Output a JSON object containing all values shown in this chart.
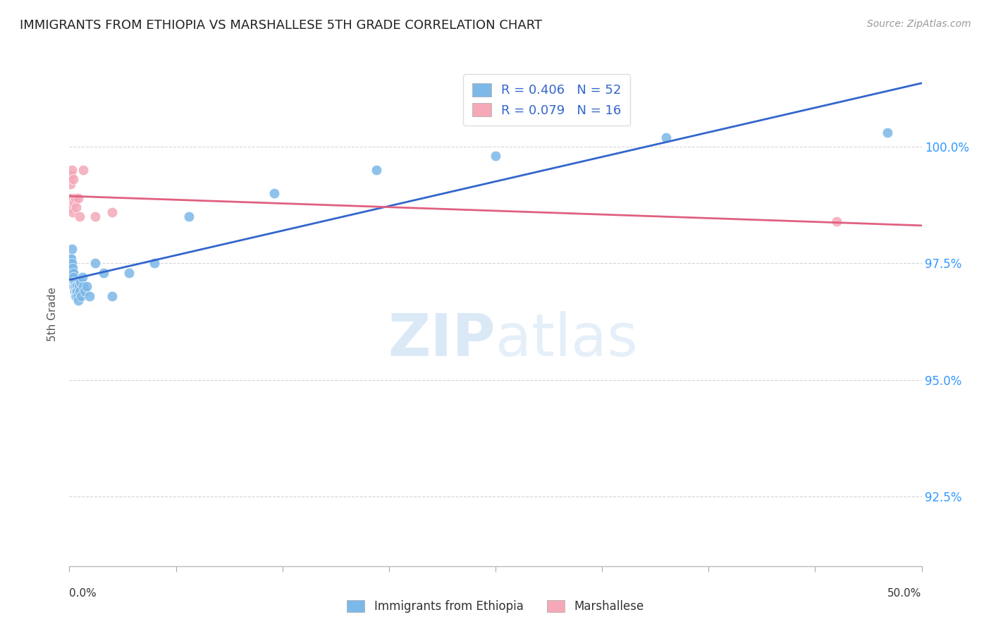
{
  "title": "IMMIGRANTS FROM ETHIOPIA VS MARSHALLESE 5TH GRADE CORRELATION CHART",
  "source": "Source: ZipAtlas.com",
  "ylabel": "5th Grade",
  "xlim": [
    0.0,
    50.0
  ],
  "ylim": [
    91.0,
    101.8
  ],
  "yticks": [
    92.5,
    95.0,
    97.5,
    100.0
  ],
  "ytick_labels": [
    "92.5%",
    "95.0%",
    "97.5%",
    "100.0%"
  ],
  "blue_color": "#7CB8E8",
  "pink_color": "#F4A8B8",
  "line_blue": "#3366CC",
  "line_pink": "#E06080",
  "ethiopia_x": [
    0.05,
    0.07,
    0.08,
    0.09,
    0.1,
    0.1,
    0.11,
    0.12,
    0.13,
    0.14,
    0.15,
    0.16,
    0.17,
    0.18,
    0.19,
    0.2,
    0.22,
    0.24,
    0.25,
    0.27,
    0.28,
    0.3,
    0.32,
    0.34,
    0.35,
    0.37,
    0.38,
    0.4,
    0.42,
    0.45,
    0.48,
    0.5,
    0.55,
    0.6,
    0.65,
    0.7,
    0.75,
    0.8,
    0.9,
    1.0,
    1.2,
    1.5,
    2.0,
    2.5,
    3.5,
    5.0,
    7.0,
    12.0,
    18.0,
    25.0,
    35.0,
    48.0
  ],
  "ethiopia_y": [
    97.5,
    97.6,
    97.4,
    97.3,
    97.5,
    97.2,
    97.6,
    97.4,
    97.3,
    97.2,
    97.8,
    97.5,
    97.3,
    97.4,
    97.2,
    97.1,
    97.3,
    97.2,
    97.0,
    97.1,
    97.0,
    96.9,
    97.1,
    97.0,
    96.8,
    97.0,
    96.9,
    96.8,
    97.0,
    96.9,
    96.8,
    96.7,
    97.0,
    96.9,
    97.1,
    96.8,
    97.2,
    97.0,
    96.9,
    97.0,
    96.8,
    97.5,
    97.3,
    96.8,
    97.3,
    97.5,
    98.5,
    99.0,
    99.5,
    99.8,
    100.2,
    100.3
  ],
  "marshallese_x": [
    0.05,
    0.08,
    0.1,
    0.12,
    0.15,
    0.18,
    0.22,
    0.28,
    0.35,
    0.4,
    0.5,
    0.6,
    0.8,
    1.5,
    2.5,
    45.0
  ],
  "marshallese_y": [
    98.7,
    99.2,
    98.9,
    99.4,
    99.5,
    98.6,
    99.3,
    98.8,
    98.9,
    98.7,
    98.9,
    98.5,
    99.5,
    98.5,
    98.6,
    98.4
  ]
}
